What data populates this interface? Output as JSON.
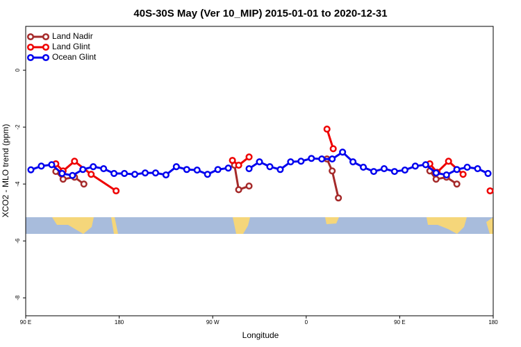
{
  "chart_data": {
    "type": "line",
    "title": "40S-30S May (Ver 10_MIP)   2015-01-01 to 2020-12-31",
    "x_label": "Longitude",
    "y_label": "XCO2 - MLO trend (ppm)",
    "xlim": [
      90,
      540
    ],
    "xticks": [
      {
        "value": 90,
        "label": "90 E"
      },
      {
        "value": 180,
        "label": "180"
      },
      {
        "value": 270,
        "label": "90 W"
      },
      {
        "value": 360,
        "label": "0"
      },
      {
        "value": 450,
        "label": "90 E"
      },
      {
        "value": 540,
        "label": "180"
      }
    ],
    "ylim": [
      -8.63,
      1.54
    ],
    "yticks": [
      0,
      -2,
      -4,
      -6,
      -8
    ],
    "legend": "top-left",
    "series": [
      {
        "name": "Land Nadir",
        "color": "#a52a2a",
        "x": [
          119,
          126,
          137,
          146,
          null,
          291,
          295,
          305,
          null,
          380,
          385,
          391,
          null,
          479,
          485,
          495,
          505
        ],
        "values": [
          -3.56,
          -3.83,
          -3.76,
          -4.0,
          null,
          -3.34,
          -4.2,
          -4.07,
          null,
          -3.12,
          -3.54,
          -4.49,
          null,
          -3.54,
          -3.83,
          -3.76,
          -4.0
        ]
      },
      {
        "name": "Land Glint",
        "color": "#ee0000",
        "x": [
          119,
          126,
          137,
          153,
          177,
          null,
          289,
          295,
          305,
          null,
          380,
          386,
          null,
          479,
          486,
          497,
          511,
          null,
          537
        ],
        "values": [
          -3.29,
          -3.54,
          -3.2,
          -3.66,
          -4.24,
          null,
          -3.17,
          -3.34,
          -3.05,
          null,
          -2.07,
          -2.76,
          null,
          -3.29,
          -3.59,
          -3.2,
          -3.66,
          null,
          -4.24
        ]
      },
      {
        "name": "Ocean Glint",
        "color": "#0000ee",
        "x": [
          95,
          105,
          115,
          125,
          135,
          145,
          155,
          165,
          175,
          185,
          195,
          205,
          215,
          225,
          235,
          245,
          255,
          265,
          275,
          285,
          295,
          305,
          315,
          325,
          335,
          345,
          355,
          365,
          375,
          385,
          395,
          405,
          415,
          425,
          435,
          445,
          455,
          465,
          475,
          485,
          495,
          505,
          515,
          525,
          535
        ],
        "values": [
          -3.5,
          -3.37,
          -3.32,
          -3.63,
          -3.7,
          -3.49,
          -3.39,
          -3.46,
          -3.63,
          -3.63,
          -3.66,
          -3.61,
          -3.61,
          -3.68,
          -3.39,
          -3.49,
          -3.51,
          -3.66,
          -3.49,
          -3.44,
          null,
          -3.46,
          -3.22,
          -3.39,
          -3.49,
          -3.22,
          -3.2,
          -3.1,
          -3.12,
          -3.12,
          -2.88,
          -3.22,
          -3.41,
          -3.56,
          -3.46,
          -3.56,
          -3.51,
          -3.37,
          -3.32,
          -3.61,
          -3.68,
          -3.49,
          -3.41,
          -3.46,
          -3.63
        ]
      }
    ]
  }
}
